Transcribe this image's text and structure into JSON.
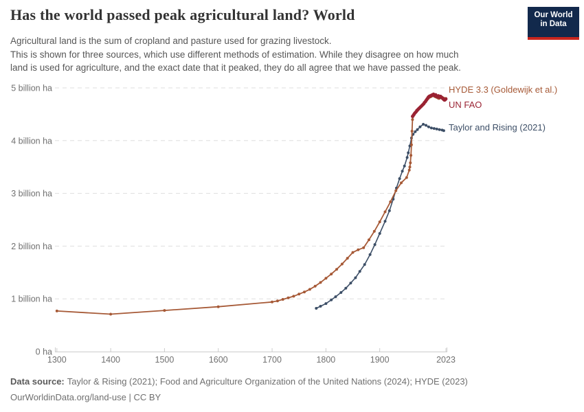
{
  "header": {
    "title": "Has the world passed peak agricultural land? World",
    "subtitle_lines": [
      "Agricultural land is the sum of cropland and pasture used for grazing livestock.",
      "This is shown for three sources, which use different methods of estimation. While they disagree on how much",
      "land is used for agriculture, and the exact date that it peaked, they do all agree that we have passed the peak."
    ],
    "logo": {
      "line1": "Our World",
      "line2": "in Data",
      "bg_color": "#12294C",
      "accent_color": "#C9261E",
      "text_color": "#FFFFFF"
    }
  },
  "colors": {
    "grid": "#DDDDDD",
    "axis_line": "#CCCCCC",
    "axis_text": "#707070",
    "title_text": "#333333",
    "subtitle_text": "#565656",
    "footer_text": "#6F6F6F"
  },
  "chart_data": {
    "type": "line",
    "title": "Has the world passed peak agricultural land? World",
    "xlabel": "",
    "ylabel": "",
    "y_unit": "billion ha",
    "x_domain": [
      1299,
      2023
    ],
    "y_domain": [
      0,
      5
    ],
    "grid": "horizontal-dashed",
    "legend_position": "right-of-line-ends",
    "x_ticks": [
      1300,
      1400,
      1500,
      1600,
      1700,
      1800,
      1900,
      2023
    ],
    "y_ticks": [
      {
        "value": 0,
        "label": "0 ha"
      },
      {
        "value": 1,
        "label": "1 billion ha"
      },
      {
        "value": 2,
        "label": "2 billion ha"
      },
      {
        "value": 3,
        "label": "3 billion ha"
      },
      {
        "value": 4,
        "label": "4 billion ha"
      },
      {
        "value": 5,
        "label": "5 billion ha"
      }
    ],
    "series": [
      {
        "name": "HYDE 3.3 (Goldewijk et al.)",
        "color": "#A65936",
        "line_width": 1.8,
        "dot_radius": 2,
        "z": 2,
        "points": [
          [
            1300,
            0.77
          ],
          [
            1400,
            0.71
          ],
          [
            1500,
            0.78
          ],
          [
            1600,
            0.85
          ],
          [
            1700,
            0.94
          ],
          [
            1710,
            0.96
          ],
          [
            1720,
            0.99
          ],
          [
            1730,
            1.02
          ],
          [
            1740,
            1.05
          ],
          [
            1750,
            1.09
          ],
          [
            1760,
            1.13
          ],
          [
            1770,
            1.18
          ],
          [
            1780,
            1.24
          ],
          [
            1790,
            1.31
          ],
          [
            1800,
            1.39
          ],
          [
            1810,
            1.47
          ],
          [
            1820,
            1.56
          ],
          [
            1830,
            1.66
          ],
          [
            1840,
            1.77
          ],
          [
            1850,
            1.88
          ],
          [
            1860,
            1.93
          ],
          [
            1870,
            1.97
          ],
          [
            1880,
            2.12
          ],
          [
            1890,
            2.28
          ],
          [
            1900,
            2.46
          ],
          [
            1910,
            2.65
          ],
          [
            1920,
            2.84
          ],
          [
            1930,
            3.05
          ],
          [
            1940,
            3.2
          ],
          [
            1950,
            3.3
          ],
          [
            1955,
            3.44
          ],
          [
            1956,
            3.5
          ],
          [
            1957,
            3.58
          ],
          [
            1958,
            3.72
          ],
          [
            1959,
            3.92
          ],
          [
            1960,
            4.18
          ],
          [
            1961,
            4.4
          ],
          [
            1962,
            4.46
          ],
          [
            1963,
            4.49
          ],
          [
            1964,
            4.51
          ],
          [
            1966,
            4.53
          ],
          [
            1968,
            4.55
          ],
          [
            1970,
            4.57
          ],
          [
            1972,
            4.6
          ],
          [
            1974,
            4.62
          ],
          [
            1976,
            4.64
          ],
          [
            1978,
            4.66
          ],
          [
            1980,
            4.68
          ],
          [
            1982,
            4.71
          ],
          [
            1984,
            4.73
          ],
          [
            1986,
            4.75
          ],
          [
            1988,
            4.78
          ],
          [
            1990,
            4.8
          ],
          [
            1992,
            4.82
          ],
          [
            1994,
            4.83
          ],
          [
            1996,
            4.84
          ],
          [
            1998,
            4.85
          ],
          [
            2000,
            4.86
          ],
          [
            2002,
            4.84
          ],
          [
            2004,
            4.83
          ],
          [
            2006,
            4.82
          ],
          [
            2008,
            4.81
          ],
          [
            2010,
            4.8
          ],
          [
            2012,
            4.81
          ],
          [
            2014,
            4.82
          ],
          [
            2016,
            4.82
          ],
          [
            2018,
            4.81
          ],
          [
            2020,
            4.8
          ],
          [
            2023,
            4.8
          ]
        ]
      },
      {
        "name": "UN FAO",
        "color": "#9A2333",
        "line_width": 3.2,
        "dot_radius": 2.4,
        "z": 3,
        "points": [
          [
            1961,
            4.46
          ],
          [
            1962,
            4.47
          ],
          [
            1963,
            4.49
          ],
          [
            1964,
            4.5
          ],
          [
            1965,
            4.52
          ],
          [
            1966,
            4.53
          ],
          [
            1967,
            4.54
          ],
          [
            1968,
            4.55
          ],
          [
            1969,
            4.57
          ],
          [
            1970,
            4.58
          ],
          [
            1971,
            4.59
          ],
          [
            1972,
            4.6
          ],
          [
            1973,
            4.61
          ],
          [
            1974,
            4.62
          ],
          [
            1975,
            4.63
          ],
          [
            1976,
            4.64
          ],
          [
            1977,
            4.65
          ],
          [
            1978,
            4.66
          ],
          [
            1979,
            4.67
          ],
          [
            1980,
            4.68
          ],
          [
            1981,
            4.69
          ],
          [
            1982,
            4.7
          ],
          [
            1983,
            4.72
          ],
          [
            1984,
            4.73
          ],
          [
            1985,
            4.74
          ],
          [
            1986,
            4.76
          ],
          [
            1987,
            4.77
          ],
          [
            1988,
            4.79
          ],
          [
            1989,
            4.8
          ],
          [
            1990,
            4.82
          ],
          [
            1991,
            4.83
          ],
          [
            1992,
            4.84
          ],
          [
            1993,
            4.84
          ],
          [
            1994,
            4.85
          ],
          [
            1995,
            4.85
          ],
          [
            1996,
            4.86
          ],
          [
            1997,
            4.86
          ],
          [
            1998,
            4.87
          ],
          [
            1999,
            4.87
          ],
          [
            2000,
            4.88
          ],
          [
            2001,
            4.86
          ],
          [
            2002,
            4.85
          ],
          [
            2003,
            4.86
          ],
          [
            2004,
            4.87
          ],
          [
            2005,
            4.85
          ],
          [
            2006,
            4.84
          ],
          [
            2007,
            4.83
          ],
          [
            2008,
            4.84
          ],
          [
            2009,
            4.85
          ],
          [
            2010,
            4.83
          ],
          [
            2011,
            4.82
          ],
          [
            2012,
            4.83
          ],
          [
            2013,
            4.84
          ],
          [
            2014,
            4.83
          ],
          [
            2015,
            4.82
          ],
          [
            2016,
            4.81
          ],
          [
            2017,
            4.8
          ],
          [
            2018,
            4.79
          ],
          [
            2019,
            4.78
          ],
          [
            2020,
            4.77
          ],
          [
            2021,
            4.77
          ],
          [
            2022,
            4.78
          ],
          [
            2023,
            4.79
          ]
        ]
      },
      {
        "name": "Taylor and Rising (2021)",
        "color": "#3C4E66",
        "line_width": 1.6,
        "dot_radius": 2,
        "z": 1,
        "points": [
          [
            1782,
            0.82
          ],
          [
            1790,
            0.86
          ],
          [
            1800,
            0.91
          ],
          [
            1810,
            0.98
          ],
          [
            1818,
            1.04
          ],
          [
            1828,
            1.12
          ],
          [
            1837,
            1.2
          ],
          [
            1846,
            1.3
          ],
          [
            1855,
            1.4
          ],
          [
            1863,
            1.52
          ],
          [
            1872,
            1.65
          ],
          [
            1882,
            1.84
          ],
          [
            1891,
            2.03
          ],
          [
            1900,
            2.24
          ],
          [
            1910,
            2.47
          ],
          [
            1918,
            2.67
          ],
          [
            1925,
            2.89
          ],
          [
            1931,
            3.1
          ],
          [
            1937,
            3.28
          ],
          [
            1942,
            3.42
          ],
          [
            1946,
            3.52
          ],
          [
            1951,
            3.68
          ],
          [
            1953,
            3.77
          ],
          [
            1956,
            3.9
          ],
          [
            1959,
            4.05
          ],
          [
            1962,
            4.12
          ],
          [
            1966,
            4.17
          ],
          [
            1970,
            4.21
          ],
          [
            1975,
            4.26
          ],
          [
            1981,
            4.31
          ],
          [
            1986,
            4.29
          ],
          [
            1991,
            4.26
          ],
          [
            1996,
            4.24
          ],
          [
            2001,
            4.23
          ],
          [
            2006,
            4.22
          ],
          [
            2011,
            4.21
          ],
          [
            2016,
            4.2
          ],
          [
            2019,
            4.19
          ]
        ]
      }
    ]
  },
  "footer": {
    "source_label": "Data source:",
    "source_text": "Taylor & Rising (2021); Food and Agriculture Organization of the United Nations (2024); HYDE (2023)",
    "url_text": "OurWorldinData.org/land-use",
    "separator": " | ",
    "license_text": "CC BY"
  }
}
